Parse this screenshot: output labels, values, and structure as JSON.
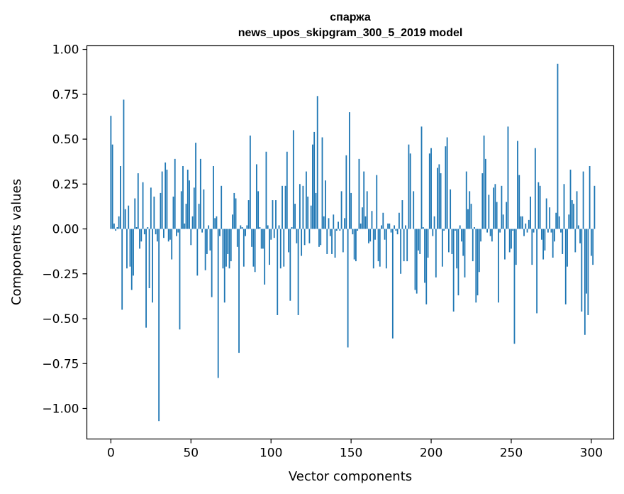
{
  "chart_data": {
    "type": "bar",
    "title": "спаржа",
    "subtitle": "news_upos_skipgram_300_5_2019 model",
    "xlabel": "Vector components",
    "ylabel": "Components values",
    "xlim": [
      -15,
      314
    ],
    "ylim": [
      -1.17,
      1.02
    ],
    "xticks": [
      0,
      50,
      100,
      150,
      200,
      250,
      300
    ],
    "yticks": [
      -1.0,
      -0.75,
      -0.5,
      -0.25,
      0.0,
      0.25,
      0.5,
      0.75,
      1.0
    ],
    "xtick_labels": [
      "0",
      "50",
      "100",
      "150",
      "200",
      "250",
      "300"
    ],
    "ytick_labels": [
      "−1.00",
      "−0.75",
      "−0.50",
      "−0.25",
      "0.00",
      "0.25",
      "0.50",
      "0.75",
      "1.00"
    ],
    "bar_color": "#1f77b4",
    "grid": false,
    "legend": "none",
    "x_start": 0,
    "values": [
      0.63,
      0.47,
      0.03,
      -0.01,
      0.01,
      0.07,
      0.35,
      -0.45,
      0.72,
      0.11,
      -0.22,
      0.13,
      -0.21,
      -0.34,
      -0.26,
      0.17,
      0.01,
      0.31,
      -0.11,
      -0.07,
      0.26,
      -0.03,
      -0.55,
      0.01,
      -0.33,
      0.23,
      -0.41,
      0.18,
      -0.03,
      -0.07,
      -1.07,
      0.2,
      0.32,
      -0.05,
      0.37,
      0.33,
      -0.07,
      -0.06,
      -0.17,
      0.18,
      0.39,
      -0.04,
      -0.02,
      -0.56,
      0.21,
      0.35,
      0.03,
      0.14,
      0.33,
      0.27,
      -0.09,
      0.07,
      0.23,
      0.48,
      -0.26,
      0.14,
      0.39,
      -0.02,
      0.22,
      -0.23,
      -0.14,
      0.02,
      -0.12,
      -0.38,
      0.35,
      0.06,
      0.07,
      -0.83,
      -0.04,
      0.24,
      -0.22,
      -0.41,
      -0.21,
      -0.14,
      -0.22,
      -0.18,
      0.08,
      0.2,
      0.17,
      -0.1,
      -0.69,
      0.02,
      0.01,
      -0.21,
      -0.04,
      0.02,
      0.16,
      0.52,
      -0.1,
      -0.21,
      -0.24,
      0.36,
      0.21,
      0.01,
      -0.11,
      -0.11,
      -0.31,
      0.43,
      0.02,
      -0.2,
      -0.06,
      0.16,
      -0.05,
      0.16,
      -0.48,
      0.02,
      -0.22,
      0.24,
      -0.21,
      0.24,
      0.43,
      -0.13,
      -0.4,
      0.01,
      0.55,
      0.14,
      -0.08,
      -0.48,
      0.25,
      -0.15,
      0.24,
      -0.09,
      0.32,
      0.18,
      -0.08,
      0.13,
      0.47,
      0.54,
      0.2,
      0.74,
      -0.1,
      -0.09,
      0.51,
      0.07,
      0.27,
      -0.14,
      0.06,
      -0.04,
      -0.14,
      0.08,
      -0.16,
      -0.01,
      0.04,
      -0.01,
      0.21,
      -0.13,
      0.06,
      0.41,
      -0.66,
      0.65,
      0.2,
      -0.03,
      -0.17,
      -0.18,
      -0.01,
      0.39,
      0.03,
      0.12,
      0.32,
      0.07,
      0.21,
      -0.08,
      -0.07,
      0.1,
      -0.22,
      -0.06,
      0.3,
      -0.18,
      -0.21,
      0.02,
      0.09,
      -0.06,
      -0.22,
      0.03,
      0.03,
      -0.02,
      -0.61,
      0.02,
      -0.01,
      -0.03,
      0.09,
      -0.25,
      0.16,
      -0.18,
      0.02,
      -0.18,
      0.47,
      0.42,
      0.0,
      0.21,
      -0.34,
      -0.36,
      -0.12,
      -0.14,
      0.57,
      0.01,
      -0.3,
      -0.42,
      -0.16,
      0.42,
      0.45,
      -0.04,
      0.07,
      -0.27,
      0.34,
      0.36,
      0.31,
      -0.21,
      -0.01,
      0.46,
      0.51,
      -0.13,
      0.22,
      -0.14,
      -0.46,
      -0.01,
      -0.22,
      -0.37,
      0.02,
      -0.07,
      -0.15,
      -0.27,
      0.32,
      0.11,
      0.21,
      0.14,
      -0.18,
      0.01,
      -0.41,
      -0.37,
      -0.24,
      -0.07,
      0.31,
      0.52,
      0.39,
      -0.02,
      0.19,
      -0.04,
      -0.07,
      0.23,
      0.25,
      0.15,
      -0.41,
      -0.02,
      0.24,
      0.08,
      -0.17,
      0.15,
      0.57,
      -0.13,
      -0.11,
      -0.01,
      -0.64,
      -0.2,
      0.49,
      0.3,
      0.07,
      0.07,
      -0.04,
      0.03,
      -0.02,
      0.05,
      0.18,
      -0.2,
      -0.02,
      0.45,
      -0.47,
      0.26,
      0.24,
      -0.06,
      -0.17,
      -0.12,
      0.17,
      -0.02,
      0.12,
      -0.02,
      -0.16,
      -0.07,
      0.09,
      0.92,
      0.07,
      -0.02,
      -0.14,
      0.25,
      -0.42,
      -0.21,
      0.08,
      0.33,
      0.16,
      0.14,
      -0.13,
      0.21,
      0.02,
      -0.08,
      -0.46,
      0.32,
      -0.59,
      -0.36,
      -0.48,
      0.35,
      -0.15,
      -0.2,
      0.24
    ]
  }
}
